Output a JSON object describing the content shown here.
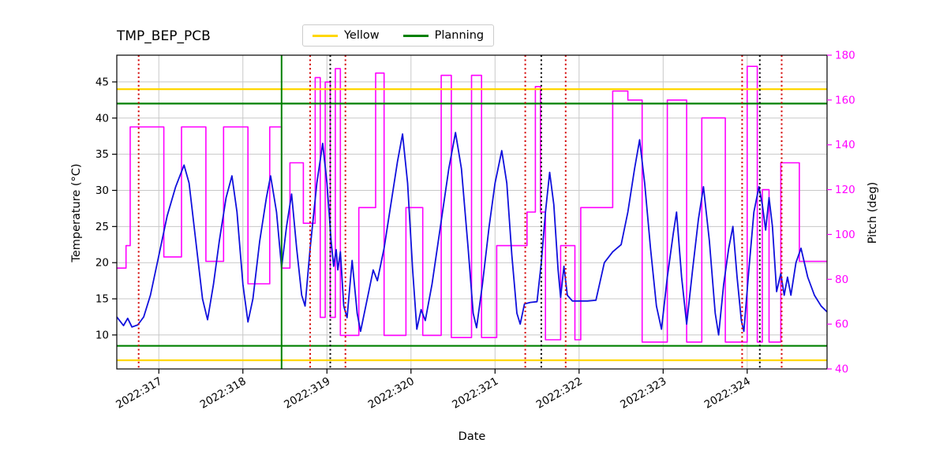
{
  "title": "TMP_BEP_PCB",
  "legend": {
    "items": [
      {
        "label": "Yellow",
        "color": "#ffd700"
      },
      {
        "label": "Planning",
        "color": "#008000"
      }
    ]
  },
  "chart_data": {
    "type": "line",
    "title": "TMP_BEP_PCB",
    "xlabel": "Date",
    "grid": true,
    "legend_position": "top-center",
    "xlim": [
      316.5,
      324.95
    ],
    "xticks": [
      317,
      318,
      319,
      320,
      321,
      322,
      323,
      324
    ],
    "xtick_labels": [
      "2022:317",
      "2022:318",
      "2022:319",
      "2022:320",
      "2022:321",
      "2022:322",
      "2022:323",
      "2022:324"
    ],
    "left_axis": {
      "label": "Temperature (°C)",
      "lim": [
        5.3,
        48.7
      ],
      "ticks": [
        10,
        15,
        20,
        25,
        30,
        35,
        40,
        45
      ],
      "color": "#000000"
    },
    "right_axis": {
      "label": "Pitch (deg)",
      "lim": [
        40,
        180
      ],
      "ticks": [
        40,
        60,
        80,
        100,
        120,
        140,
        160,
        180
      ],
      "color": "#ff00ff"
    },
    "series": [
      {
        "name": "pitch",
        "axis": "right",
        "type": "step",
        "color": "#ff00ff",
        "width": 1.6,
        "points": [
          [
            316.5,
            85
          ],
          [
            316.61,
            95
          ],
          [
            316.66,
            148
          ],
          [
            317.06,
            90
          ],
          [
            317.27,
            148
          ],
          [
            317.56,
            88
          ],
          [
            317.77,
            148
          ],
          [
            318.06,
            78
          ],
          [
            318.32,
            148
          ],
          [
            318.46,
            85
          ],
          [
            318.56,
            132
          ],
          [
            318.72,
            105
          ],
          [
            318.86,
            170
          ],
          [
            318.92,
            63
          ],
          [
            318.98,
            168
          ],
          [
            319.04,
            63
          ],
          [
            319.1,
            174
          ],
          [
            319.16,
            55
          ],
          [
            319.38,
            112
          ],
          [
            319.58,
            172
          ],
          [
            319.68,
            55
          ],
          [
            319.94,
            112
          ],
          [
            320.14,
            55
          ],
          [
            320.36,
            171
          ],
          [
            320.48,
            54
          ],
          [
            320.72,
            171
          ],
          [
            320.84,
            54
          ],
          [
            321.02,
            95
          ],
          [
            321.38,
            110
          ],
          [
            321.48,
            166
          ],
          [
            321.54,
            110
          ],
          [
            321.6,
            53
          ],
          [
            321.78,
            95
          ],
          [
            321.95,
            53
          ],
          [
            322.02,
            112
          ],
          [
            322.4,
            164
          ],
          [
            322.58,
            160
          ],
          [
            322.75,
            52
          ],
          [
            323.05,
            160
          ],
          [
            323.28,
            52
          ],
          [
            323.46,
            152
          ],
          [
            323.74,
            52
          ],
          [
            324.0,
            175
          ],
          [
            324.12,
            52
          ],
          [
            324.18,
            120
          ],
          [
            324.26,
            52
          ],
          [
            324.4,
            132
          ],
          [
            324.62,
            88
          ]
        ]
      },
      {
        "name": "temperature",
        "axis": "left",
        "type": "line",
        "color": "#1010dd",
        "width": 1.8,
        "points": [
          [
            316.5,
            12.5
          ],
          [
            316.58,
            11.3
          ],
          [
            316.63,
            12.3
          ],
          [
            316.68,
            11.1
          ],
          [
            316.75,
            11.4
          ],
          [
            316.82,
            12.5
          ],
          [
            316.9,
            15.5
          ],
          [
            317.0,
            21
          ],
          [
            317.1,
            26.5
          ],
          [
            317.2,
            30.5
          ],
          [
            317.3,
            33.5
          ],
          [
            317.36,
            31
          ],
          [
            317.44,
            23
          ],
          [
            317.52,
            15
          ],
          [
            317.58,
            12.1
          ],
          [
            317.65,
            17
          ],
          [
            317.72,
            23
          ],
          [
            317.8,
            29
          ],
          [
            317.87,
            32
          ],
          [
            317.93,
            27
          ],
          [
            318.0,
            17
          ],
          [
            318.06,
            11.8
          ],
          [
            318.12,
            15
          ],
          [
            318.2,
            23
          ],
          [
            318.28,
            29
          ],
          [
            318.33,
            32
          ],
          [
            318.4,
            27
          ],
          [
            318.46,
            19.3
          ],
          [
            318.52,
            25
          ],
          [
            318.58,
            29.5
          ],
          [
            318.64,
            22
          ],
          [
            318.7,
            15.5
          ],
          [
            318.74,
            14
          ],
          [
            318.8,
            22
          ],
          [
            318.88,
            31
          ],
          [
            318.95,
            36.5
          ],
          [
            319.0,
            31
          ],
          [
            319.05,
            23
          ],
          [
            319.08,
            19.5
          ],
          [
            319.11,
            21.8
          ],
          [
            319.13,
            19
          ],
          [
            319.16,
            21.5
          ],
          [
            319.2,
            14
          ],
          [
            319.24,
            12.4
          ],
          [
            319.3,
            20.3
          ],
          [
            319.36,
            13
          ],
          [
            319.4,
            10.5
          ],
          [
            319.48,
            15
          ],
          [
            319.55,
            19
          ],
          [
            319.6,
            17.5
          ],
          [
            319.68,
            22
          ],
          [
            319.76,
            28
          ],
          [
            319.84,
            34
          ],
          [
            319.9,
            37.8
          ],
          [
            319.96,
            31
          ],
          [
            320.02,
            19
          ],
          [
            320.07,
            10.8
          ],
          [
            320.12,
            13.5
          ],
          [
            320.17,
            12
          ],
          [
            320.25,
            17
          ],
          [
            320.35,
            25
          ],
          [
            320.45,
            33
          ],
          [
            320.53,
            38
          ],
          [
            320.6,
            33
          ],
          [
            320.68,
            22
          ],
          [
            320.74,
            13
          ],
          [
            320.78,
            11
          ],
          [
            320.85,
            17
          ],
          [
            320.93,
            25
          ],
          [
            321.0,
            31
          ],
          [
            321.08,
            35.5
          ],
          [
            321.14,
            31
          ],
          [
            321.2,
            21
          ],
          [
            321.26,
            13
          ],
          [
            321.3,
            11.5
          ],
          [
            321.35,
            14.3
          ],
          [
            321.42,
            14.5
          ],
          [
            321.5,
            14.6
          ],
          [
            321.55,
            20
          ],
          [
            321.6,
            27
          ],
          [
            321.65,
            32.5
          ],
          [
            321.7,
            28
          ],
          [
            321.75,
            19
          ],
          [
            321.78,
            15.2
          ],
          [
            321.82,
            19.5
          ],
          [
            321.86,
            15.5
          ],
          [
            321.92,
            14.7
          ],
          [
            322.0,
            14.7
          ],
          [
            322.1,
            14.7
          ],
          [
            322.2,
            14.8
          ],
          [
            322.3,
            20
          ],
          [
            322.4,
            21.5
          ],
          [
            322.5,
            22.5
          ],
          [
            322.58,
            27
          ],
          [
            322.66,
            33
          ],
          [
            322.72,
            37
          ],
          [
            322.78,
            31
          ],
          [
            322.85,
            22
          ],
          [
            322.92,
            14
          ],
          [
            322.98,
            10.8
          ],
          [
            323.05,
            18
          ],
          [
            323.12,
            24
          ],
          [
            323.16,
            27
          ],
          [
            323.22,
            18
          ],
          [
            323.28,
            11.5
          ],
          [
            323.35,
            19
          ],
          [
            323.42,
            26
          ],
          [
            323.48,
            30.5
          ],
          [
            323.55,
            23
          ],
          [
            323.62,
            13
          ],
          [
            323.66,
            10
          ],
          [
            323.72,
            17
          ],
          [
            323.78,
            22
          ],
          [
            323.83,
            25
          ],
          [
            323.88,
            18
          ],
          [
            323.93,
            12
          ],
          [
            323.96,
            10.5
          ],
          [
            324.02,
            19
          ],
          [
            324.08,
            27
          ],
          [
            324.14,
            30.5
          ],
          [
            324.18,
            28
          ],
          [
            324.22,
            24.5
          ],
          [
            324.26,
            29
          ],
          [
            324.3,
            25
          ],
          [
            324.35,
            16
          ],
          [
            324.4,
            18.5
          ],
          [
            324.44,
            15.5
          ],
          [
            324.48,
            18
          ],
          [
            324.52,
            15.5
          ],
          [
            324.58,
            20
          ],
          [
            324.64,
            22
          ],
          [
            324.72,
            18
          ],
          [
            324.8,
            15.5
          ],
          [
            324.88,
            14
          ],
          [
            324.95,
            13.2
          ]
        ]
      }
    ],
    "hlines": [
      {
        "name": "yellow-limit-high",
        "y": 44,
        "axis": "left",
        "color": "#ffd700",
        "style": "solid",
        "width": 2.2
      },
      {
        "name": "yellow-limit-low",
        "y": 6.5,
        "axis": "left",
        "color": "#ffd700",
        "style": "solid",
        "width": 2.2
      },
      {
        "name": "planning-limit-high",
        "y": 42,
        "axis": "left",
        "color": "#008000",
        "style": "solid",
        "width": 2.2
      },
      {
        "name": "planning-limit-low",
        "y": 8.5,
        "axis": "left",
        "color": "#008000",
        "style": "solid",
        "width": 2.2
      }
    ],
    "vlines": [
      {
        "name": "planning-event",
        "x": 318.46,
        "color": "#008000",
        "style": "solid",
        "width": 2
      },
      {
        "name": "red-event-1",
        "x": 316.76,
        "color": "#d40000",
        "style": "dotted",
        "width": 2
      },
      {
        "name": "red-event-2",
        "x": 318.8,
        "color": "#d40000",
        "style": "dotted",
        "width": 2
      },
      {
        "name": "red-event-3",
        "x": 319.22,
        "color": "#d40000",
        "style": "dotted",
        "width": 2
      },
      {
        "name": "red-event-4",
        "x": 321.36,
        "color": "#d40000",
        "style": "dotted",
        "width": 2
      },
      {
        "name": "red-event-5",
        "x": 321.84,
        "color": "#d40000",
        "style": "dotted",
        "width": 2
      },
      {
        "name": "red-event-6",
        "x": 323.94,
        "color": "#d40000",
        "style": "dotted",
        "width": 2
      },
      {
        "name": "red-event-7",
        "x": 324.41,
        "color": "#d40000",
        "style": "dotted",
        "width": 2
      },
      {
        "name": "black-event-1",
        "x": 319.04,
        "color": "#000000",
        "style": "dotted",
        "width": 2
      },
      {
        "name": "black-event-2",
        "x": 321.55,
        "color": "#000000",
        "style": "dotted",
        "width": 2
      },
      {
        "name": "black-event-3",
        "x": 324.15,
        "color": "#000000",
        "style": "dotted",
        "width": 2
      }
    ]
  }
}
